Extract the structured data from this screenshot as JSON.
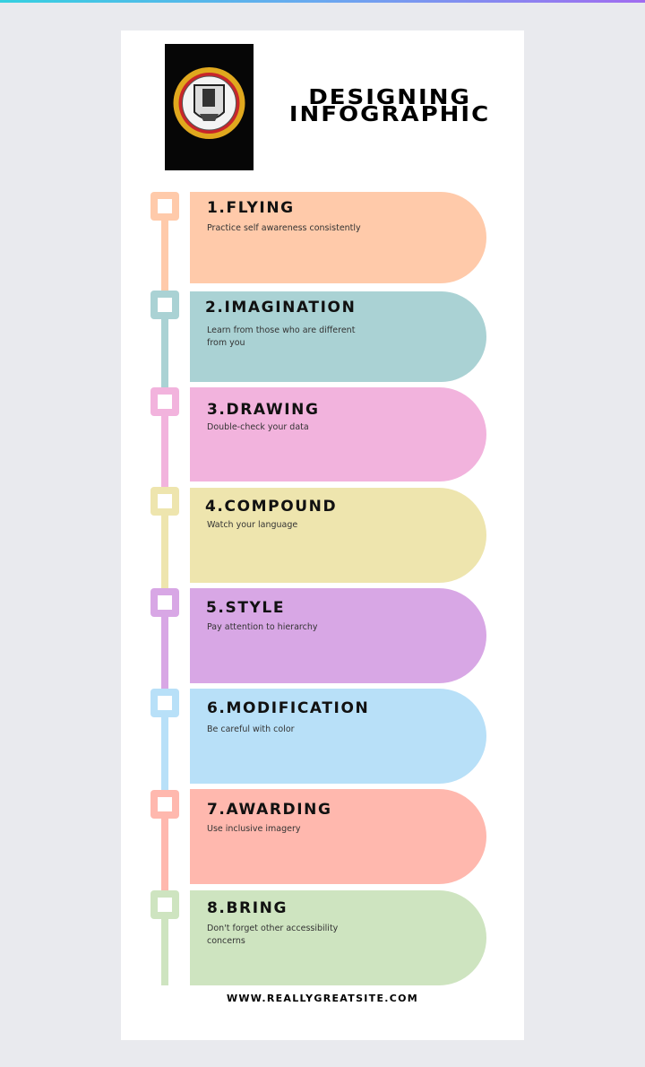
{
  "header": {
    "title_line1": "DESIGNING",
    "title_line2": "INFOGRAPHIC"
  },
  "steps": [
    {
      "title": "1.FLYING",
      "desc": "Practice self awareness consistently",
      "color": "#ffcaaa"
    },
    {
      "title": "2.IMAGINATION",
      "desc": "Learn from those who are different from you",
      "color": "#aad2d4"
    },
    {
      "title": "3.DRAWING",
      "desc": "Double-check your data",
      "color": "#f2b3dd"
    },
    {
      "title": "4.COMPOUND",
      "desc": "Watch your language",
      "color": "#eee5ae"
    },
    {
      "title": "5.STYLE",
      "desc": "Pay attention to hierarchy",
      "color": "#d8a7e5"
    },
    {
      "title": "6.MODIFICATION",
      "desc": "Be careful with color",
      "color": "#b8e0f8"
    },
    {
      "title": "7.AWARDING",
      "desc": "Use inclusive imagery",
      "color": "#ffb8ae"
    },
    {
      "title": "8.BRING",
      "desc": "Don't forget other accessibility concerns",
      "color": "#cee4c0"
    }
  ],
  "footer": {
    "url": "WWW.REALLYGREATSITE.COM"
  }
}
